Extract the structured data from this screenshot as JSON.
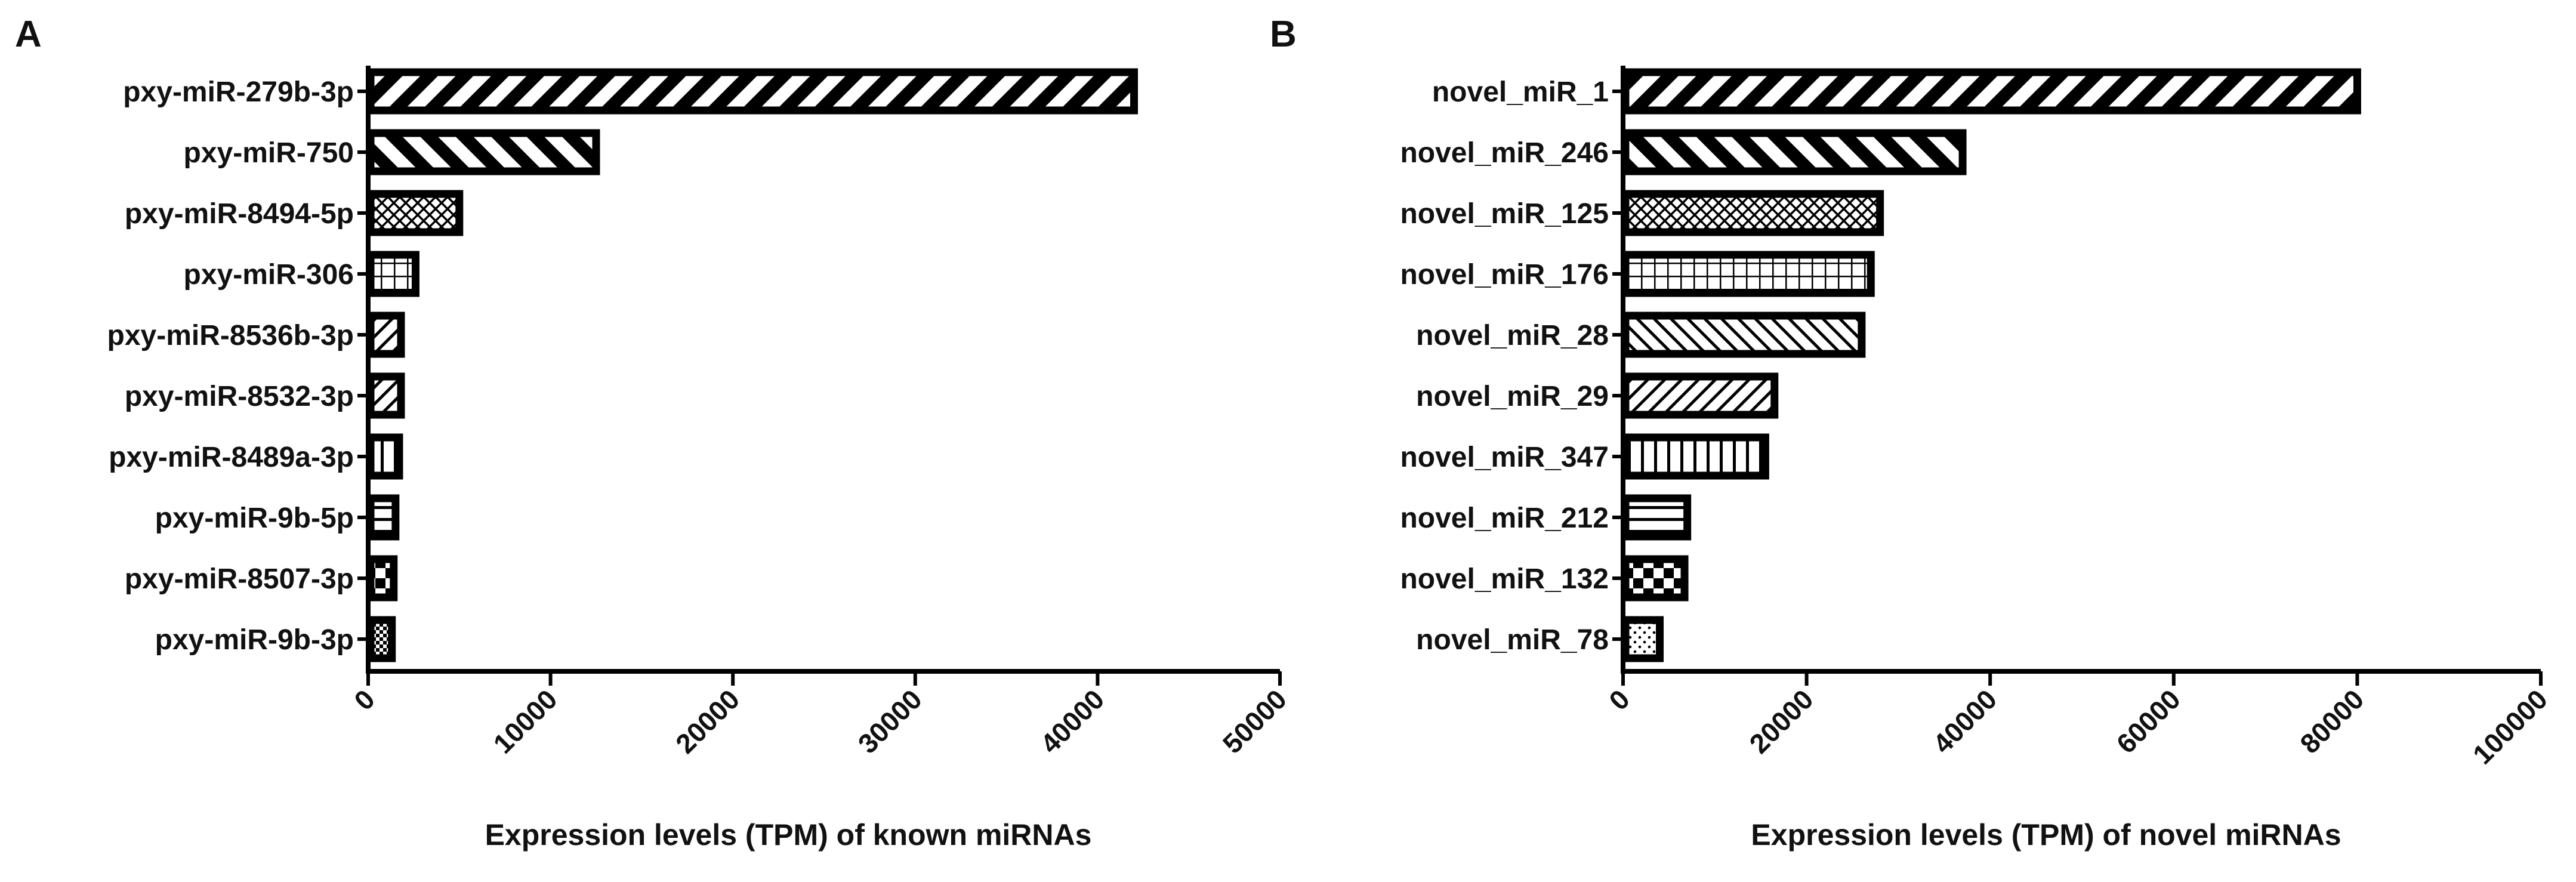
{
  "panels": [
    {
      "letter": "A",
      "chart_data": {
        "type": "bar",
        "orientation": "horizontal",
        "categories": [
          "pxy-miR-279b-3p",
          "pxy-miR-750",
          "pxy-miR-8494-5p",
          "pxy-miR-306",
          "pxy-miR-8536b-3p",
          "pxy-miR-8532-3p",
          "pxy-miR-8489a-3p",
          "pxy-miR-9b-5p",
          "pxy-miR-8507-3p",
          "pxy-miR-9b-3p"
        ],
        "values": [
          42000,
          12500,
          5000,
          2600,
          1800,
          1800,
          1700,
          1500,
          1400,
          1300
        ],
        "xlabel": "Expression levels (TPM) of known miRNAs",
        "ylabel": "",
        "xlim": [
          0,
          50000
        ],
        "xticks": [
          0,
          10000,
          20000,
          30000,
          40000,
          50000
        ],
        "tick_labels": [
          "0",
          "10000",
          "20000",
          "30000",
          "40000",
          "50000"
        ],
        "patterns": [
          "diag-up-wide",
          "diag-down-wide",
          "crosshatch",
          "grid",
          "diag-up",
          "diag-up",
          "vertical",
          "horizontal",
          "checker",
          "checker-fine"
        ],
        "grid": false,
        "legend": "none"
      }
    },
    {
      "letter": "B",
      "chart_data": {
        "type": "bar",
        "orientation": "horizontal",
        "categories": [
          "novel_miR_1",
          "novel_miR_246",
          "novel_miR_125",
          "novel_miR_176",
          "novel_miR_28",
          "novel_miR_29",
          "novel_miR_347",
          "novel_miR_212",
          "novel_miR_132",
          "novel_miR_78"
        ],
        "values": [
          80000,
          37000,
          28000,
          27000,
          26000,
          16500,
          15500,
          7000,
          6700,
          4000
        ],
        "xlabel": "Expression levels (TPM) of novel miRNAs",
        "ylabel": "",
        "xlim": [
          0,
          100000
        ],
        "xticks": [
          0,
          20000,
          40000,
          60000,
          80000,
          100000
        ],
        "tick_labels": [
          "0",
          "20000",
          "40000",
          "60000",
          "80000",
          "100000"
        ],
        "patterns": [
          "diag-up-wide",
          "diag-down-wide",
          "crosshatch",
          "grid",
          "diag-down",
          "diag-up",
          "vertical",
          "horizontal",
          "checker",
          "dots"
        ],
        "grid": false,
        "legend": "none"
      }
    }
  ]
}
